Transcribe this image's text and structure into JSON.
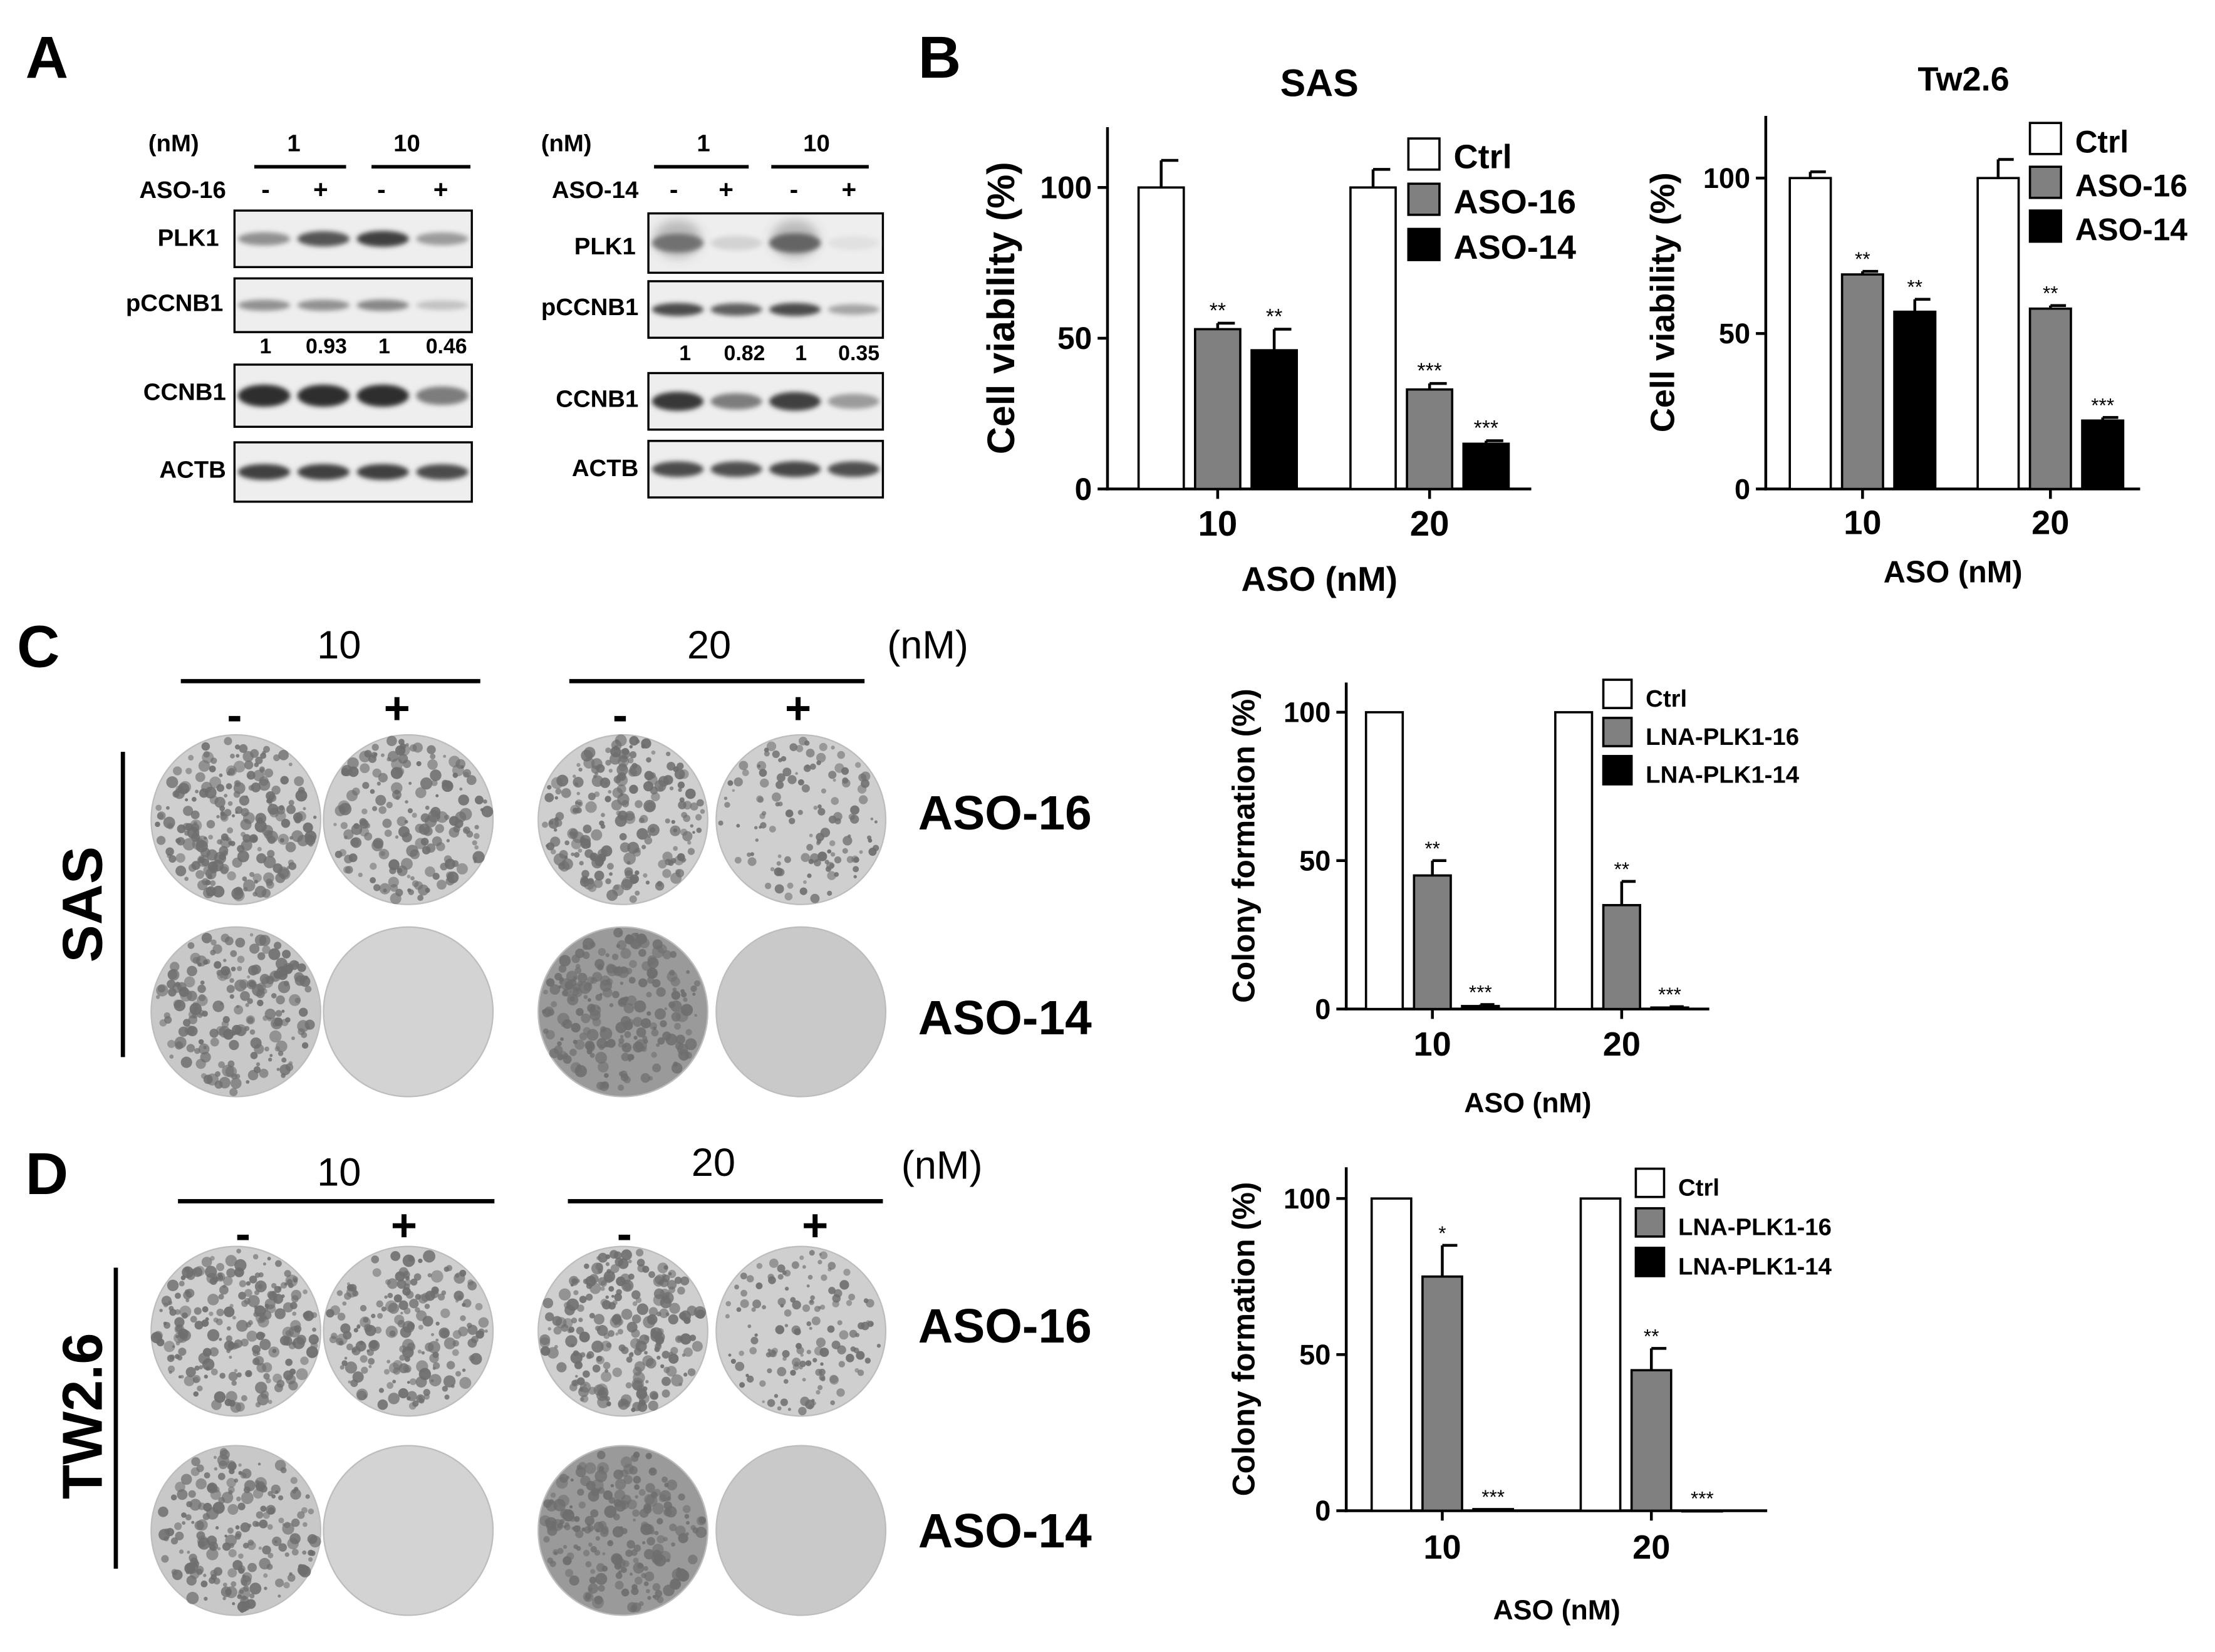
{
  "panels": {
    "A": {
      "label": "A",
      "blots": [
        {
          "unit": "(nM)",
          "doses": [
            "1",
            "10"
          ],
          "treatment": "ASO-16",
          "signs": [
            "-",
            "+",
            "-",
            "+"
          ],
          "bands": [
            "PLK1",
            "pCCNB1",
            "CCNB1",
            "ACTB"
          ],
          "quant": [
            "1",
            "0.93",
            "1",
            "0.46"
          ]
        },
        {
          "unit": "(nM)",
          "doses": [
            "1",
            "10"
          ],
          "treatment": "ASO-14",
          "signs": [
            "-",
            "+",
            "-",
            "+"
          ],
          "bands": [
            "PLK1",
            "pCCNB1",
            "CCNB1",
            "ACTB"
          ],
          "quant": [
            "1",
            "0.82",
            "1",
            "0.35"
          ]
        }
      ]
    },
    "B": {
      "label": "B"
    },
    "C": {
      "label": "C",
      "cell_line": "SAS",
      "doses": [
        "10",
        "20"
      ],
      "unit": "(nM)",
      "signs": [
        "-",
        "+",
        "-",
        "+"
      ],
      "rows": [
        "ASO-16",
        "ASO-14"
      ]
    },
    "D": {
      "label": "D",
      "cell_line": "TW2.6",
      "doses": [
        "10",
        "20"
      ],
      "unit": "(nM)",
      "signs": [
        "-",
        "+",
        "-",
        "+"
      ],
      "rows": [
        "ASO-16",
        "ASO-14"
      ]
    }
  },
  "colors": {
    "ctrl": "#ffffff",
    "aso16": "#808080",
    "aso14": "#000000",
    "plate": "#d9d9d9",
    "colony": "#6e6e6e"
  },
  "chart_data": [
    {
      "id": "B-SAS",
      "type": "bar",
      "title": "SAS",
      "xlabel": "ASO (nM)",
      "ylabel": "Cell viability (%)",
      "categories": [
        "10",
        "20"
      ],
      "ylim": [
        0,
        120
      ],
      "yticks": [
        0,
        50,
        100
      ],
      "series": [
        {
          "name": "Ctrl",
          "values": [
            100,
            100
          ],
          "errors": [
            9,
            6
          ],
          "marks": [
            "",
            ""
          ]
        },
        {
          "name": "ASO-16",
          "values": [
            53,
            33
          ],
          "errors": [
            2,
            2
          ],
          "marks": [
            "**",
            "***"
          ]
        },
        {
          "name": "ASO-14",
          "values": [
            46,
            15
          ],
          "errors": [
            7,
            1
          ],
          "marks": [
            "**",
            "***"
          ]
        }
      ]
    },
    {
      "id": "B-Tw2.6",
      "type": "bar",
      "title": "Tw2.6",
      "xlabel": "ASO (nM)",
      "ylabel": "Cell viability (%)",
      "categories": [
        "10",
        "20"
      ],
      "ylim": [
        0,
        120
      ],
      "yticks": [
        0,
        50,
        100
      ],
      "series": [
        {
          "name": "Ctrl",
          "values": [
            100,
            100
          ],
          "errors": [
            2,
            6
          ],
          "marks": [
            "",
            ""
          ]
        },
        {
          "name": "ASO-16",
          "values": [
            69,
            58
          ],
          "errors": [
            1,
            1
          ],
          "marks": [
            "**",
            "**"
          ]
        },
        {
          "name": "ASO-14",
          "values": [
            57,
            22
          ],
          "errors": [
            4,
            1
          ],
          "marks": [
            "**",
            "***"
          ]
        }
      ]
    },
    {
      "id": "C-colony",
      "type": "bar",
      "title": "",
      "xlabel": "ASO (nM)",
      "ylabel": "Colony formation (%)",
      "categories": [
        "10",
        "20"
      ],
      "ylim": [
        0,
        110
      ],
      "yticks": [
        0,
        50,
        100
      ],
      "series": [
        {
          "name": "Ctrl",
          "values": [
            100,
            100
          ],
          "errors": [
            0,
            0
          ],
          "marks": [
            "",
            ""
          ]
        },
        {
          "name": "LNA-PLK1-16",
          "values": [
            45,
            35
          ],
          "errors": [
            5,
            8
          ],
          "marks": [
            "**",
            "**"
          ]
        },
        {
          "name": "LNA-PLK1-14",
          "values": [
            1,
            0.5
          ],
          "errors": [
            0.5,
            0.3
          ],
          "marks": [
            "***",
            "***"
          ]
        }
      ]
    },
    {
      "id": "D-colony",
      "type": "bar",
      "title": "",
      "xlabel": "ASO (nM)",
      "ylabel": "Colony formation (%)",
      "categories": [
        "10",
        "20"
      ],
      "ylim": [
        0,
        110
      ],
      "yticks": [
        0,
        50,
        100
      ],
      "series": [
        {
          "name": "Ctrl",
          "values": [
            100,
            100
          ],
          "errors": [
            0,
            0
          ],
          "marks": [
            "",
            ""
          ]
        },
        {
          "name": "LNA-PLK1-16",
          "values": [
            75,
            45
          ],
          "errors": [
            10,
            7
          ],
          "marks": [
            "*",
            "**"
          ]
        },
        {
          "name": "LNA-PLK1-14",
          "values": [
            0.5,
            0
          ],
          "errors": [
            0,
            0
          ],
          "marks": [
            "***",
            "***"
          ]
        }
      ]
    }
  ]
}
